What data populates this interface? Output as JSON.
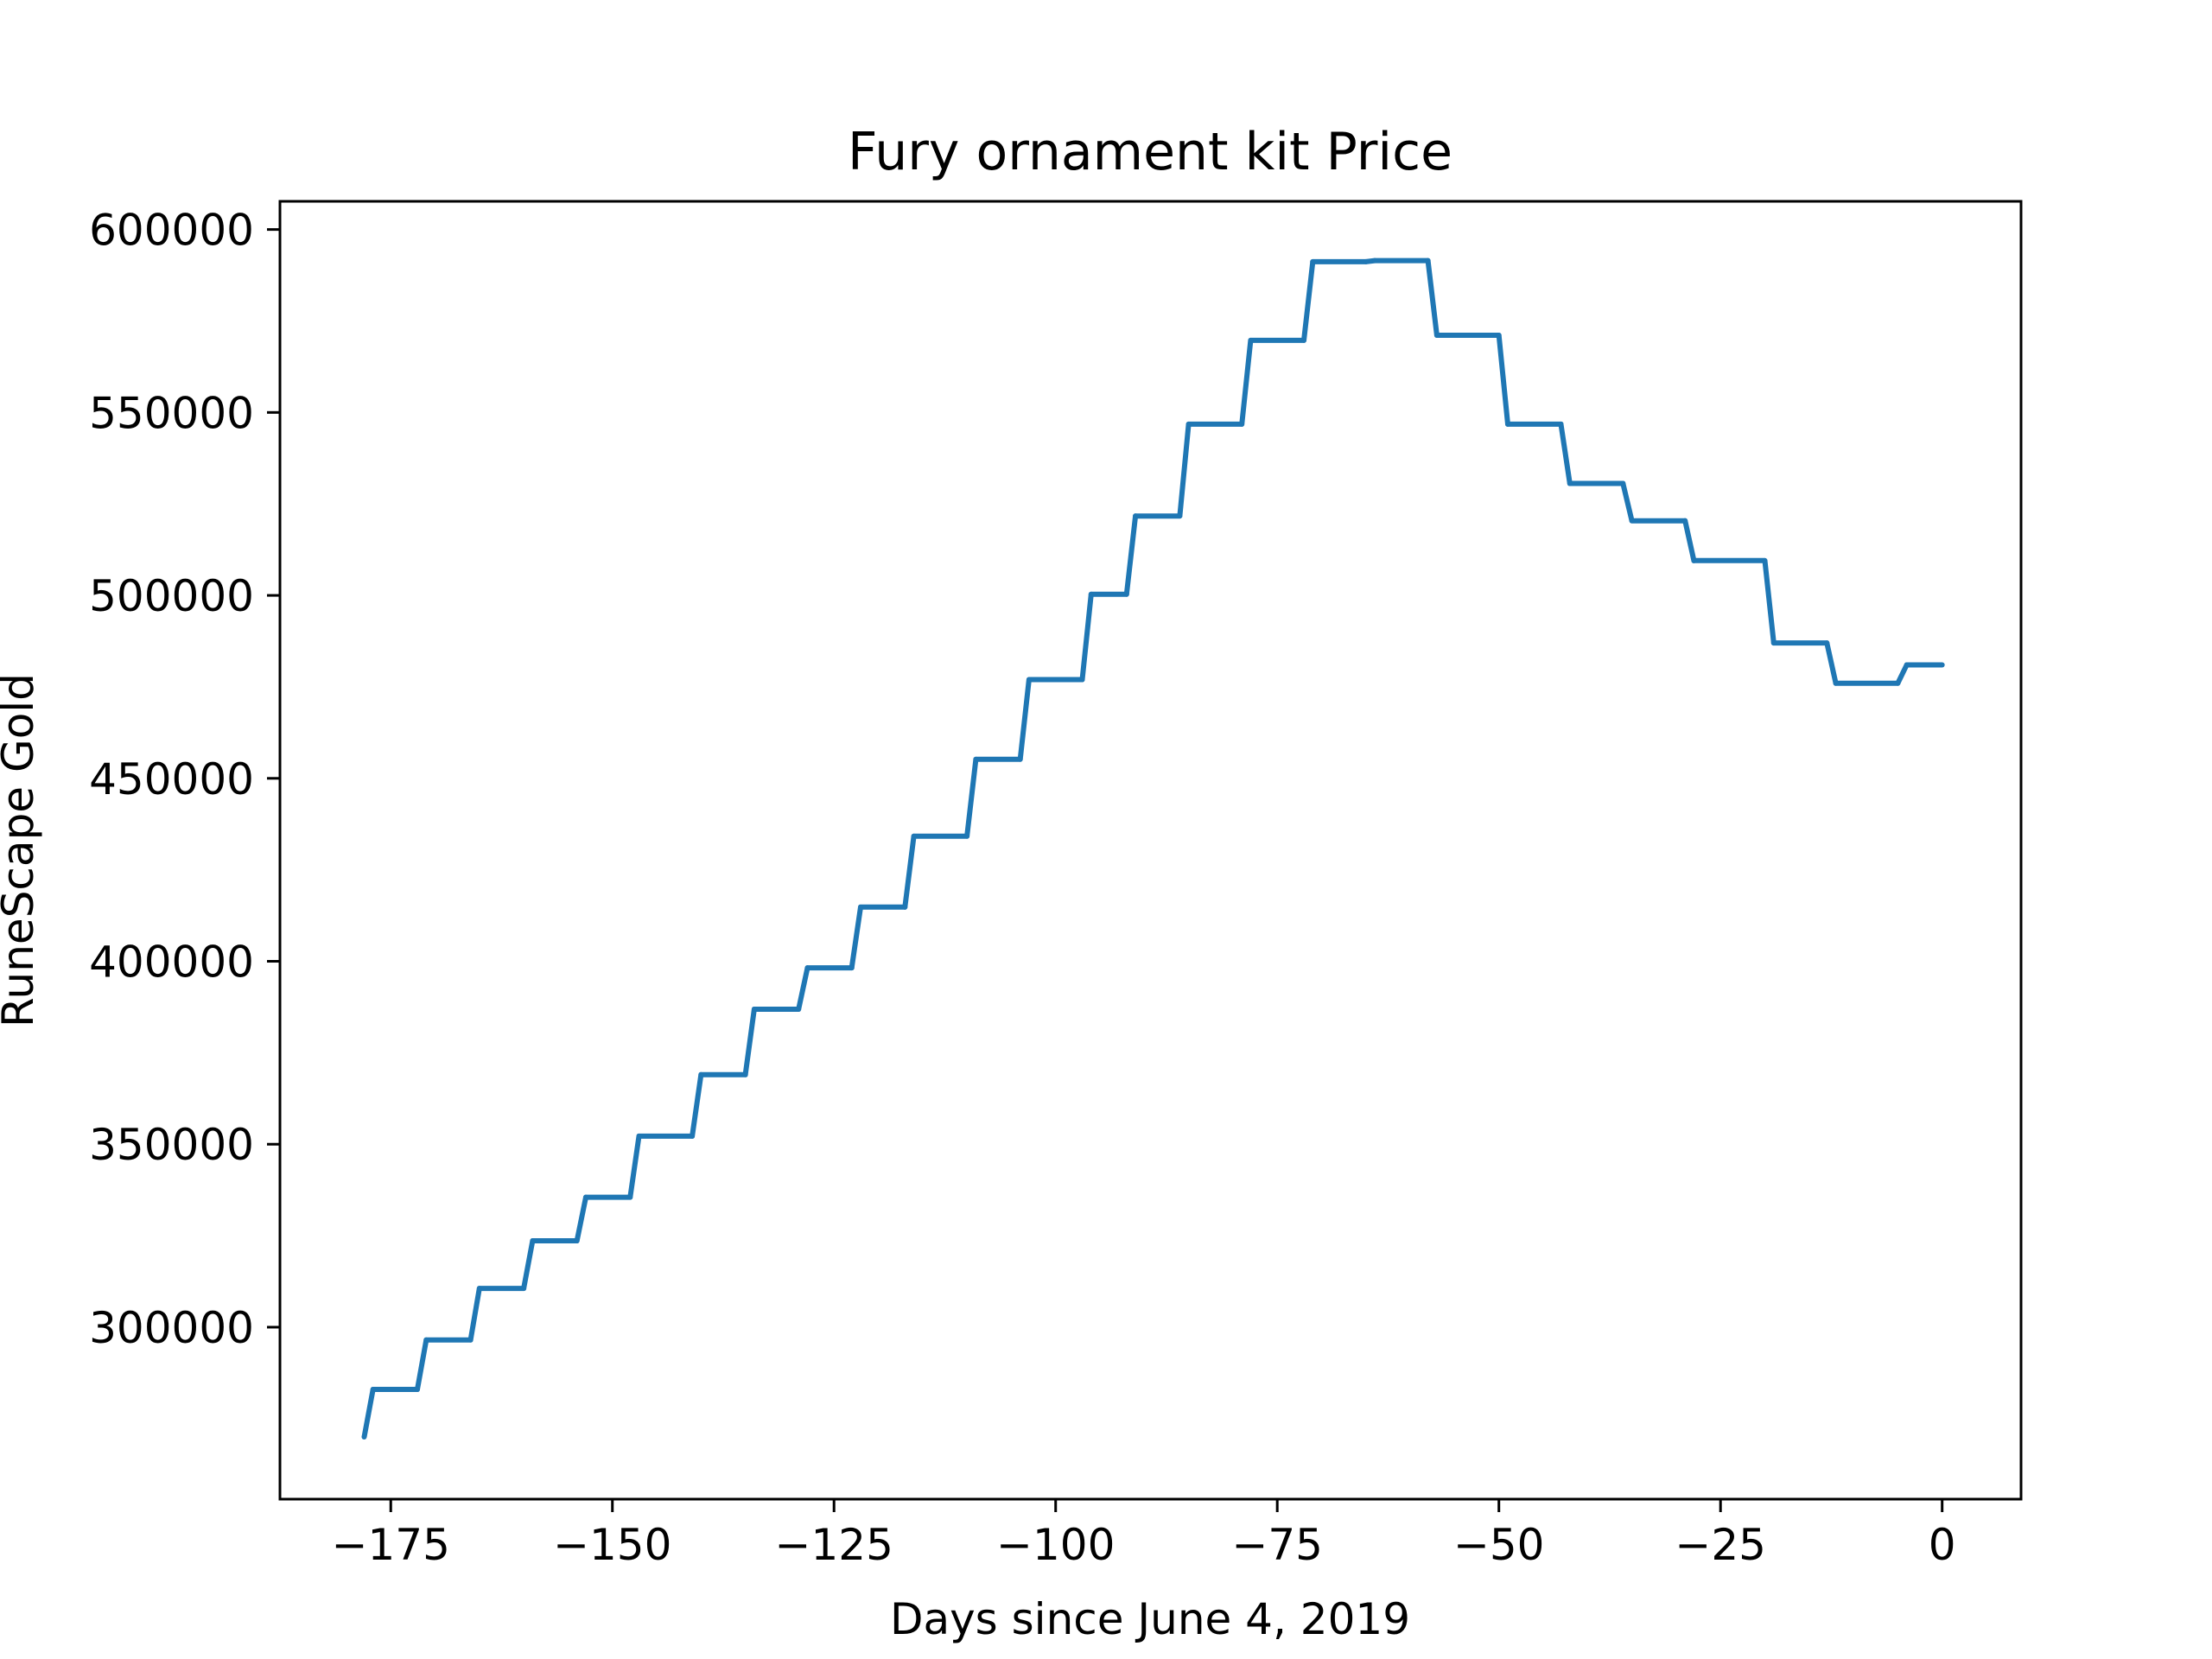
{
  "chart_data": {
    "type": "line",
    "title": "Fury ornament kit Price",
    "xlabel": "Days since June 4, 2019",
    "ylabel": "RuneScape Gold",
    "xlim": [
      -187.5,
      8.9
    ],
    "ylim": [
      253000,
      607700
    ],
    "xticks": [
      -175,
      -150,
      -125,
      -100,
      -75,
      -50,
      -25,
      0
    ],
    "xtick_labels": [
      "−175",
      "−150",
      "−125",
      "−100",
      "−75",
      "−50",
      "−25",
      "0"
    ],
    "yticks": [
      300000,
      350000,
      400000,
      450000,
      500000,
      550000,
      600000
    ],
    "ytick_labels": [
      "300000",
      "350000",
      "400000",
      "450000",
      "500000",
      "550000",
      "600000"
    ],
    "grid": false,
    "colors": {
      "line": "#1f77b4",
      "axes": "#000000",
      "background": "#ffffff"
    },
    "series": [
      {
        "x": [
          -178,
          -177,
          -172,
          -171,
          -166,
          -165,
          -160,
          -159,
          -154,
          -153,
          -148,
          -147,
          -141,
          -140,
          -135,
          -134,
          -129,
          -128,
          -123,
          -122,
          -117,
          -116,
          -110,
          -109,
          -104,
          -103,
          -97,
          -96,
          -92,
          -91,
          -86,
          -85,
          -79,
          -78,
          -72,
          -71,
          -65,
          -64,
          -58,
          -57,
          -50,
          -49,
          -43,
          -42,
          -36,
          -35,
          -29,
          -28,
          -20,
          -19,
          -13,
          -12,
          -5,
          -4,
          0
        ],
        "y": [
          270000,
          283000,
          283000,
          296500,
          296500,
          310600,
          310600,
          323600,
          323600,
          335500,
          335500,
          352200,
          352200,
          369000,
          369000,
          386900,
          386900,
          398200,
          398200,
          414800,
          414800,
          434200,
          434200,
          455200,
          455200,
          477000,
          477000,
          500300,
          500300,
          521700,
          521700,
          546800,
          546800,
          569700,
          569700,
          591200,
          591200,
          591500,
          591500,
          571100,
          571100,
          546800,
          546800,
          530600,
          530600,
          520400,
          520400,
          509500,
          509500,
          487000,
          487000,
          476000,
          476000,
          481000,
          481000
        ]
      }
    ]
  }
}
